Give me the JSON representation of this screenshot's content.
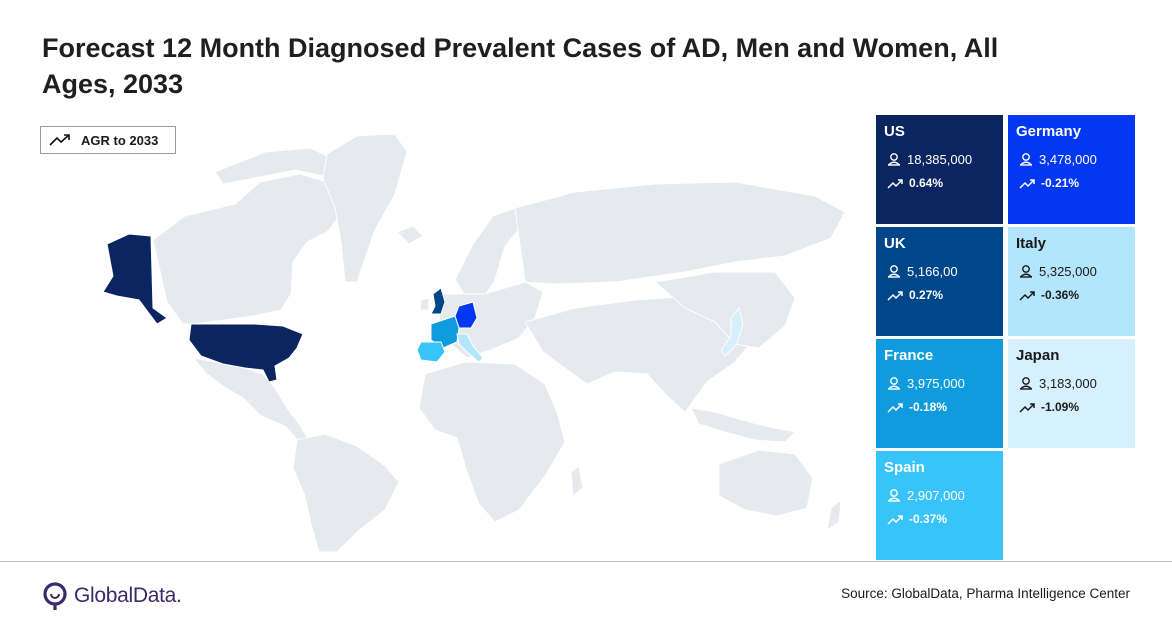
{
  "title": "Forecast 12 Month Diagnosed Prevalent Cases of AD, Men and Women, All Ages, 2033",
  "legend": {
    "label": "AGR to 2033",
    "icon": "trend-up-icon"
  },
  "countries": [
    {
      "key": "us",
      "name": "US",
      "cases": "18,385,000",
      "agr": "0.64%",
      "color": "#0a2560"
    },
    {
      "key": "germany",
      "name": "Germany",
      "cases": "3,478,000",
      "agr": "-0.21%",
      "color": "#0437f2"
    },
    {
      "key": "uk",
      "name": "UK",
      "cases": "5,166,00",
      "agr": "0.27%",
      "color": "#00468b"
    },
    {
      "key": "italy",
      "name": "Italy",
      "cases": "5,325,000",
      "agr": "-0.36%",
      "color": "#b3e5fc"
    },
    {
      "key": "france",
      "name": "France",
      "cases": "3,975,000",
      "agr": "-0.18%",
      "color": "#0f9bde"
    },
    {
      "key": "japan",
      "name": "Japan",
      "cases": "3,183,000",
      "agr": "-1.09%",
      "color": "#d6f0fd"
    },
    {
      "key": "spain",
      "name": "Spain",
      "cases": "2,907,000",
      "agr": "-0.37%",
      "color": "#38c4fb"
    }
  ],
  "map": {
    "base_color": "#e6e9ee",
    "border_color": "#ffffff"
  },
  "footer": {
    "logo_text": "GlobalData.",
    "source": "Source: GlobalData, Pharma Intelligence Center"
  }
}
